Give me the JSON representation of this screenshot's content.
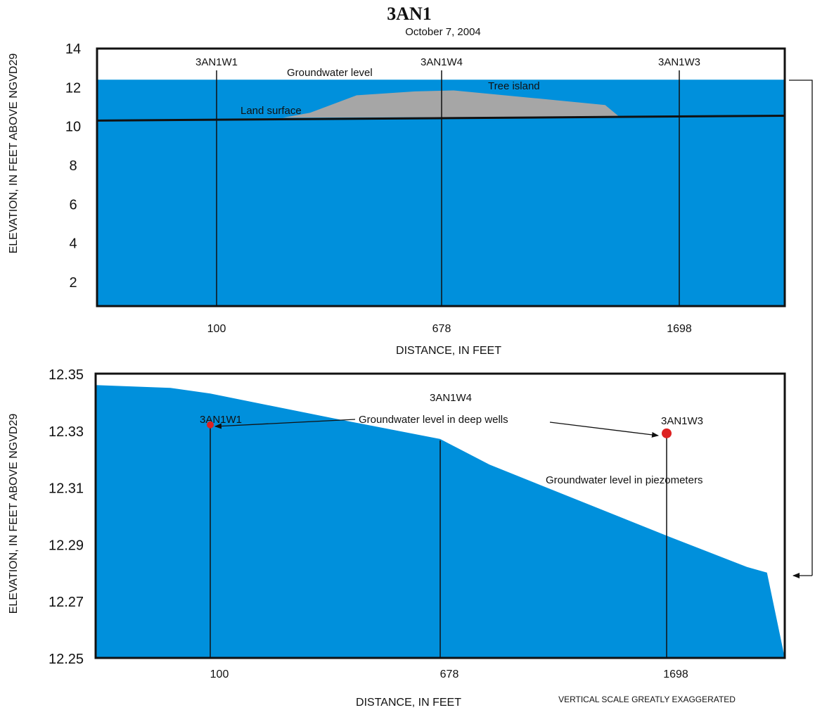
{
  "title": "3AN1",
  "subtitle": "October 7, 2004",
  "note": "VERTICAL SCALE GREATLY EXAGGERATED",
  "colors": {
    "water": "#0090dc",
    "tree_island": "#a6a6a6",
    "well_marker": "#dd2222",
    "frame": "#111111"
  },
  "chart_data": [
    {
      "type": "area",
      "ylabel": "ELEVATION, IN FEET ABOVE NGVD29",
      "xlabel": "DISTANCE, IN FEET",
      "ylim": [
        0.8,
        14
      ],
      "yticks": [
        14,
        12,
        10,
        8,
        6,
        4,
        2
      ],
      "xticks": [
        {
          "label": "100",
          "value": 100
        },
        {
          "label": "678",
          "value": 678
        },
        {
          "label": "1698",
          "value": 1698
        }
      ],
      "wells": [
        {
          "name": "3AN1W1",
          "x": 100
        },
        {
          "name": "3AN1W4",
          "x": 678
        },
        {
          "name": "3AN1W3",
          "x": 1698
        }
      ],
      "groundwater_level": 12.4,
      "land_surface_ends": [
        10.3,
        10.55
      ],
      "tree_island_profile": [
        {
          "x": 270,
          "y": 10.45
        },
        {
          "x": 340,
          "y": 10.7
        },
        {
          "x": 460,
          "y": 11.6
        },
        {
          "x": 610,
          "y": 11.8
        },
        {
          "x": 730,
          "y": 11.85
        },
        {
          "x": 1080,
          "y": 11.45
        },
        {
          "x": 1380,
          "y": 11.1
        },
        {
          "x": 1440,
          "y": 10.5
        }
      ],
      "annotations": {
        "groundwater": "Groundwater level",
        "tree_island": "Tree island",
        "land_surface": "Land surface"
      }
    },
    {
      "type": "area",
      "ylabel": "ELEVATION, IN FEET ABOVE NGVD29",
      "xlabel": "DISTANCE, IN FEET",
      "ylim": [
        12.25,
        12.35
      ],
      "yticks": [
        12.35,
        12.33,
        12.31,
        12.29,
        12.27,
        12.25
      ],
      "xticks": [
        {
          "label": "100",
          "value": 100
        },
        {
          "label": "678",
          "value": 678
        },
        {
          "label": "1698",
          "value": 1698
        }
      ],
      "wells": [
        {
          "name": "3AN1W1",
          "x": 100
        },
        {
          "name": "3AN1W4",
          "x": 678
        },
        {
          "name": "3AN1W3",
          "x": 1698
        }
      ],
      "piezometer_profile": [
        {
          "x": -200,
          "y": 12.346
        },
        {
          "x": 0,
          "y": 12.345
        },
        {
          "x": 100,
          "y": 12.343
        },
        {
          "x": 420,
          "y": 12.334
        },
        {
          "x": 678,
          "y": 12.327
        },
        {
          "x": 900,
          "y": 12.318
        },
        {
          "x": 1698,
          "y": 12.293
        },
        {
          "x": 2060,
          "y": 12.282
        },
        {
          "x": 2150,
          "y": 12.28
        }
      ],
      "deep_well_levels": [
        {
          "well": "3AN1W1",
          "x": 100,
          "y": 12.332
        },
        {
          "well": "3AN1W3",
          "x": 1698,
          "y": 12.329
        }
      ],
      "annotations": {
        "deep_wells": "Groundwater level in deep wells",
        "piezometers": "Groundwater level in piezometers"
      }
    }
  ]
}
